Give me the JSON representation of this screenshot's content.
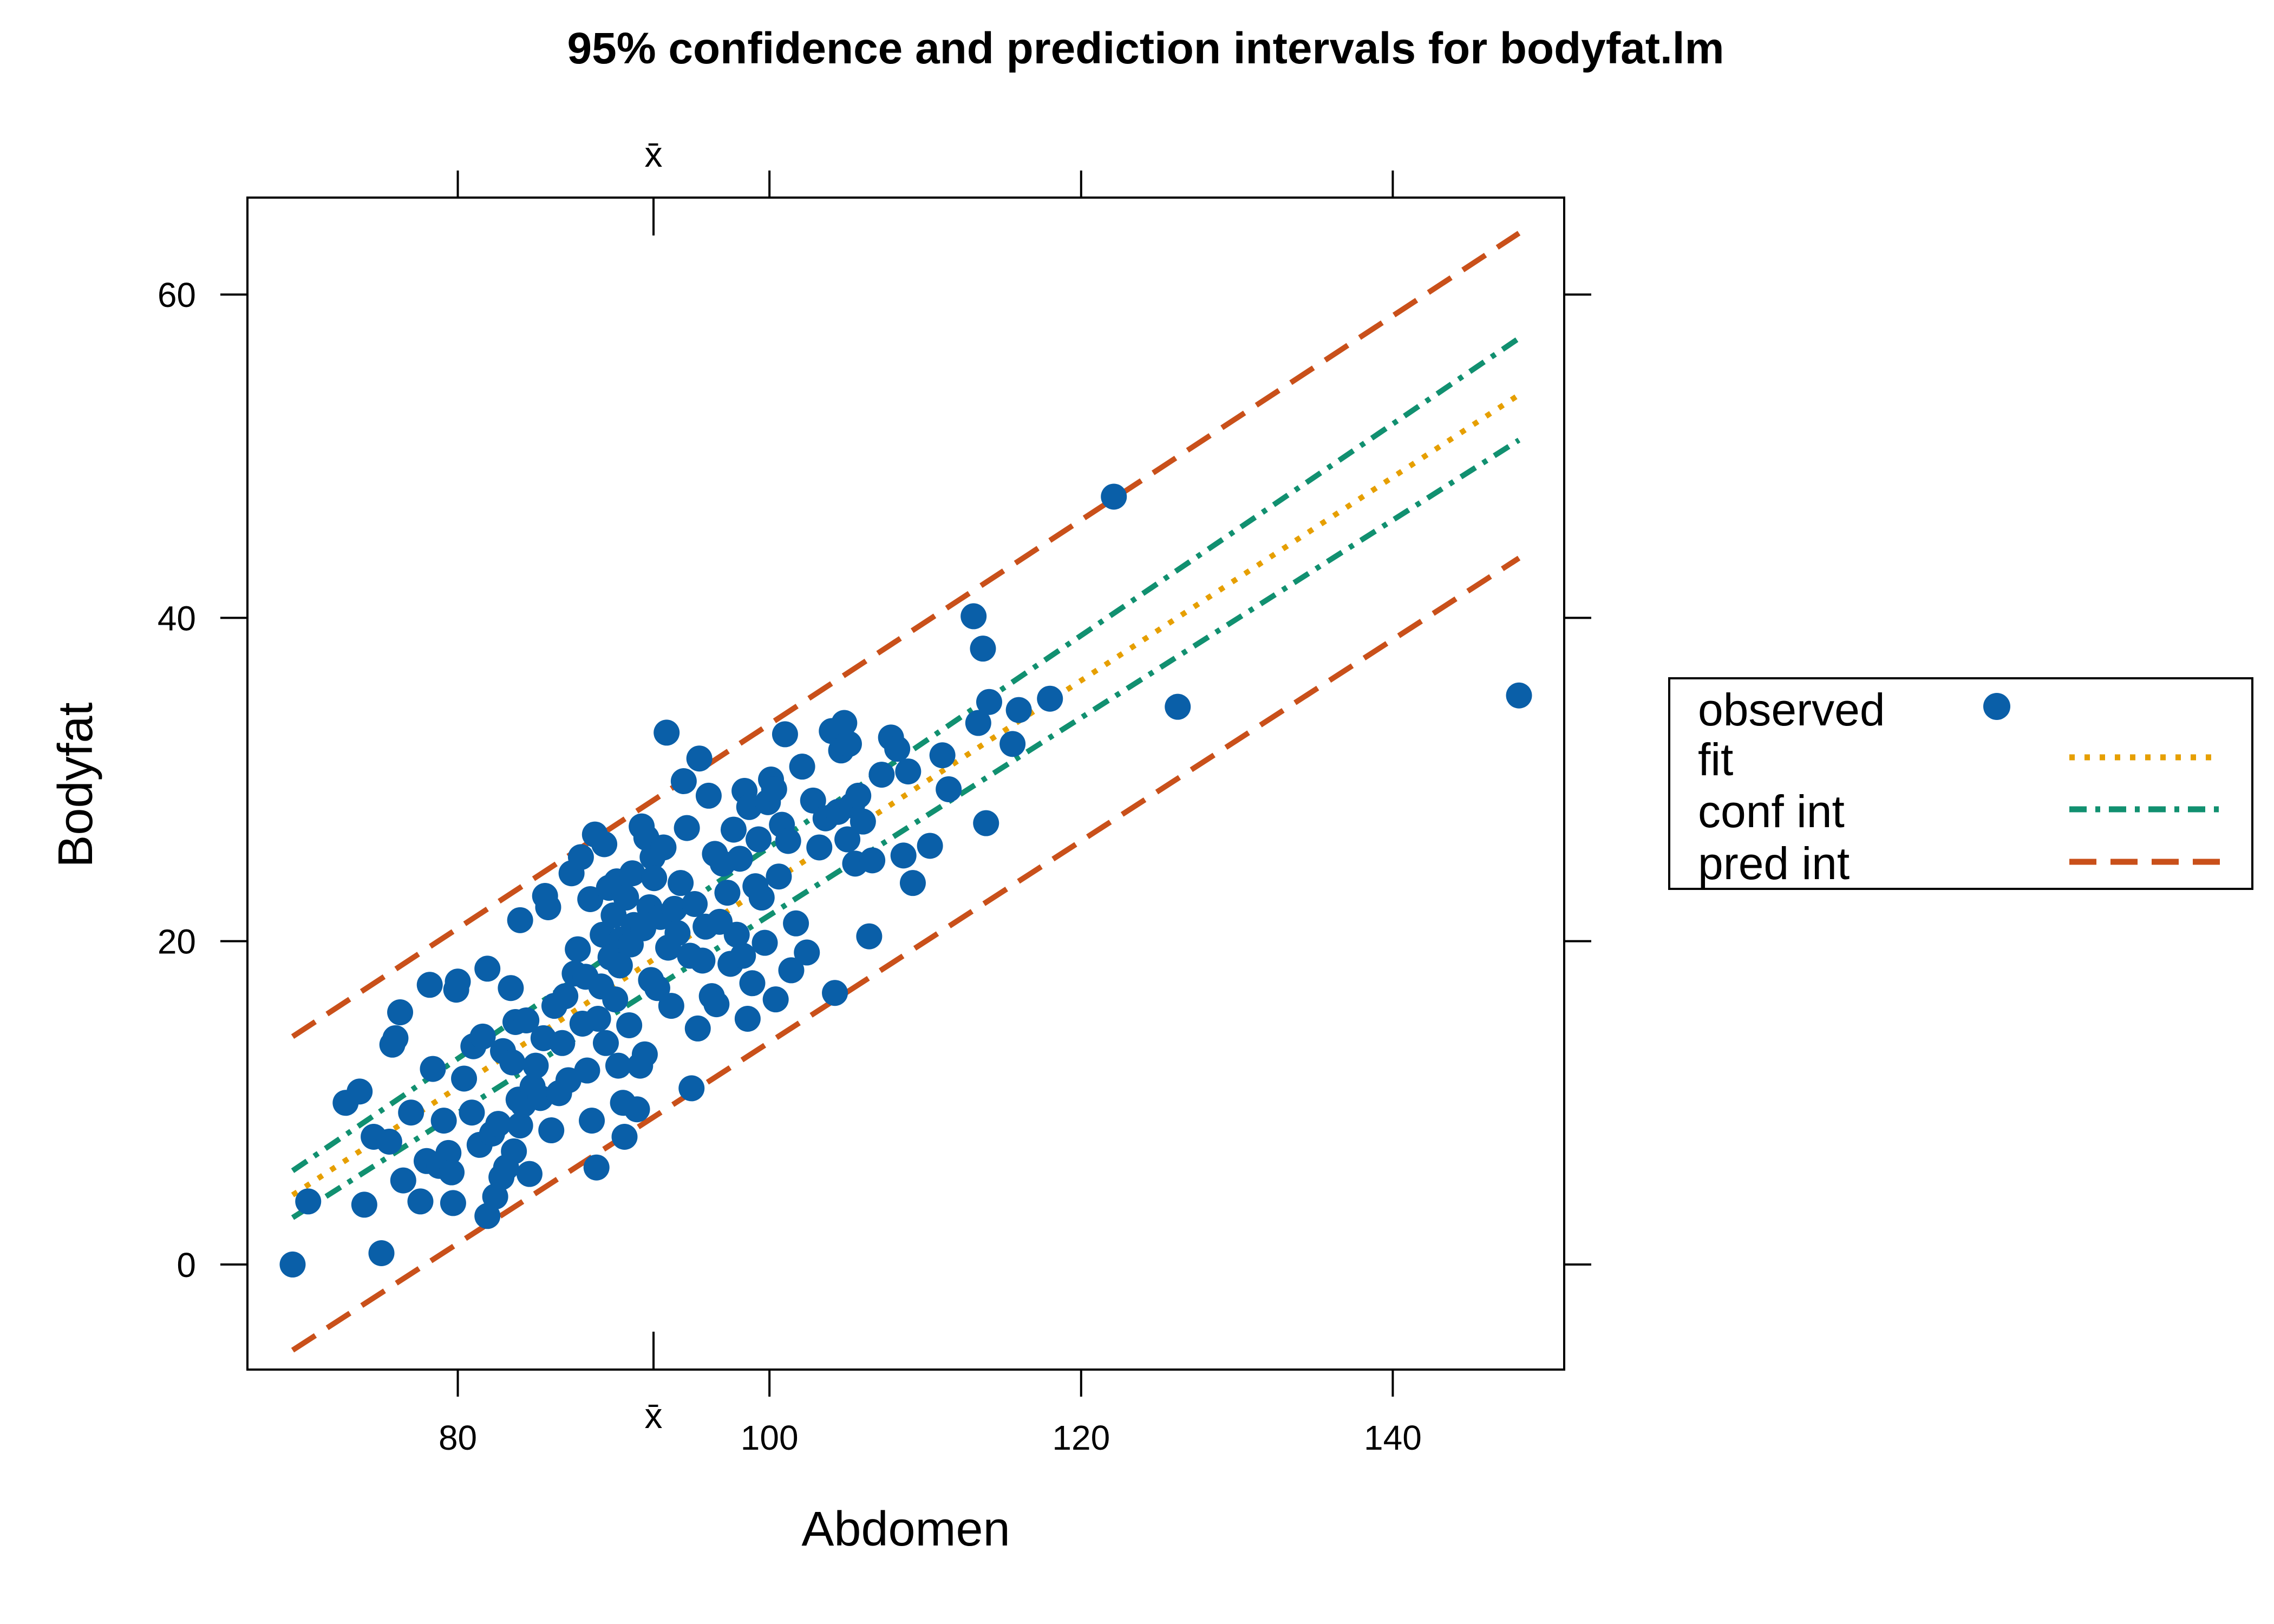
{
  "chart_data": {
    "type": "scatter",
    "title": "95% confidence and prediction intervals for bodyfat.lm",
    "xlabel": "Abdomen",
    "ylabel": "Bodyfat",
    "xlim": [
      66.5,
      151
    ],
    "ylim": [
      -6.5,
      66
    ],
    "xticks": [
      80,
      100,
      120,
      140
    ],
    "yticks": [
      0,
      20,
      40,
      60
    ],
    "xbar": 92.56,
    "xbar_label": "x̄",
    "grid": false,
    "legend_position": "right",
    "legend": [
      {
        "label": "observed",
        "style": "point",
        "color": "#0a5fa8"
      },
      {
        "label": "fit",
        "style": "dotted",
        "color": "#e69f00"
      },
      {
        "label": "conf int",
        "style": "dotdash",
        "color": "#119070"
      },
      {
        "label": "pred int",
        "style": "dashed",
        "color": "#c9501a"
      }
    ],
    "lines": {
      "x": [
        69.4,
        148.1
      ],
      "fit": [
        4.3,
        53.8
      ],
      "conf_lower": [
        2.9,
        51.0
      ],
      "conf_upper": [
        5.8,
        57.3
      ],
      "pred_lower": [
        -5.3,
        43.7
      ],
      "pred_upper": [
        14.1,
        63.8
      ]
    },
    "points": [
      [
        69.4,
        0.0
      ],
      [
        70.4,
        3.9
      ],
      [
        72.8,
        10.0
      ],
      [
        73.7,
        10.7
      ],
      [
        74.0,
        3.7
      ],
      [
        74.6,
        7.9
      ],
      [
        75.1,
        0.7
      ],
      [
        75.6,
        7.6
      ],
      [
        75.8,
        13.6
      ],
      [
        76.0,
        14.0
      ],
      [
        76.3,
        15.6
      ],
      [
        76.5,
        5.2
      ],
      [
        77.0,
        9.4
      ],
      [
        77.6,
        3.9
      ],
      [
        78.0,
        6.4
      ],
      [
        78.2,
        17.3
      ],
      [
        78.4,
        12.1
      ],
      [
        78.8,
        6.1
      ],
      [
        79.1,
        8.9
      ],
      [
        79.4,
        6.9
      ],
      [
        79.6,
        5.7
      ],
      [
        79.7,
        3.8
      ],
      [
        79.9,
        17.0
      ],
      [
        80.0,
        17.5
      ],
      [
        80.4,
        11.5
      ],
      [
        80.9,
        9.4
      ],
      [
        81.0,
        13.5
      ],
      [
        81.4,
        7.4
      ],
      [
        81.6,
        14.1
      ],
      [
        81.9,
        3.0
      ],
      [
        81.9,
        18.3
      ],
      [
        82.2,
        8.1
      ],
      [
        82.4,
        4.2
      ],
      [
        82.6,
        8.7
      ],
      [
        82.8,
        5.4
      ],
      [
        82.9,
        13.2
      ],
      [
        83.1,
        6.0
      ],
      [
        83.4,
        17.1
      ],
      [
        83.5,
        12.5
      ],
      [
        83.6,
        7.0
      ],
      [
        83.7,
        15.0
      ],
      [
        83.9,
        10.2
      ],
      [
        84.0,
        8.6
      ],
      [
        84.0,
        21.3
      ],
      [
        84.2,
        9.9
      ],
      [
        84.4,
        15.1
      ],
      [
        84.6,
        5.6
      ],
      [
        84.8,
        11.0
      ],
      [
        85.0,
        12.3
      ],
      [
        85.3,
        10.3
      ],
      [
        85.5,
        14.0
      ],
      [
        85.6,
        22.8
      ],
      [
        85.8,
        22.1
      ],
      [
        86.0,
        8.3
      ],
      [
        86.2,
        16.0
      ],
      [
        86.5,
        10.6
      ],
      [
        86.7,
        13.7
      ],
      [
        86.9,
        16.6
      ],
      [
        87.1,
        11.4
      ],
      [
        87.3,
        24.2
      ],
      [
        87.5,
        18.0
      ],
      [
        87.7,
        19.5
      ],
      [
        87.9,
        25.2
      ],
      [
        88.0,
        14.9
      ],
      [
        88.2,
        17.8
      ],
      [
        88.3,
        12.0
      ],
      [
        88.5,
        22.6
      ],
      [
        88.6,
        8.9
      ],
      [
        88.8,
        26.6
      ],
      [
        88.9,
        6.0
      ],
      [
        89.0,
        15.2
      ],
      [
        89.2,
        17.2
      ],
      [
        89.3,
        20.4
      ],
      [
        89.4,
        26.0
      ],
      [
        89.5,
        13.7
      ],
      [
        89.7,
        23.3
      ],
      [
        89.8,
        19.0
      ],
      [
        90.0,
        21.6
      ],
      [
        90.1,
        16.4
      ],
      [
        90.2,
        23.7
      ],
      [
        90.3,
        12.3
      ],
      [
        90.4,
        18.5
      ],
      [
        90.5,
        20.1
      ],
      [
        90.6,
        10.0
      ],
      [
        90.7,
        7.9
      ],
      [
        90.8,
        22.7
      ],
      [
        91.0,
        14.8
      ],
      [
        91.1,
        19.8
      ],
      [
        91.2,
        24.2
      ],
      [
        91.3,
        21.0
      ],
      [
        91.5,
        9.6
      ],
      [
        91.7,
        12.3
      ],
      [
        91.8,
        27.1
      ],
      [
        91.9,
        20.8
      ],
      [
        92.0,
        13.0
      ],
      [
        92.1,
        26.4
      ],
      [
        92.3,
        22.1
      ],
      [
        92.4,
        17.6
      ],
      [
        92.5,
        25.2
      ],
      [
        92.6,
        23.9
      ],
      [
        92.8,
        17.1
      ],
      [
        93.0,
        21.5
      ],
      [
        93.2,
        25.8
      ],
      [
        93.4,
        32.9
      ],
      [
        93.5,
        19.6
      ],
      [
        93.7,
        16.0
      ],
      [
        93.9,
        22.0
      ],
      [
        94.1,
        20.5
      ],
      [
        94.3,
        23.6
      ],
      [
        94.5,
        29.9
      ],
      [
        94.7,
        27.0
      ],
      [
        94.9,
        19.1
      ],
      [
        95.0,
        10.9
      ],
      [
        95.2,
        22.3
      ],
      [
        95.4,
        14.6
      ],
      [
        95.5,
        31.3
      ],
      [
        95.7,
        18.8
      ],
      [
        95.9,
        20.9
      ],
      [
        96.1,
        29.0
      ],
      [
        96.3,
        16.6
      ],
      [
        96.5,
        25.4
      ],
      [
        96.6,
        16.1
      ],
      [
        96.8,
        21.2
      ],
      [
        97.0,
        24.8
      ],
      [
        97.3,
        23.0
      ],
      [
        97.5,
        18.6
      ],
      [
        97.7,
        26.9
      ],
      [
        97.9,
        20.4
      ],
      [
        98.1,
        25.1
      ],
      [
        98.3,
        19.1
      ],
      [
        98.4,
        29.3
      ],
      [
        98.6,
        15.2
      ],
      [
        98.7,
        28.3
      ],
      [
        98.9,
        17.4
      ],
      [
        99.1,
        23.4
      ],
      [
        99.3,
        26.3
      ],
      [
        99.5,
        22.7
      ],
      [
        99.7,
        19.9
      ],
      [
        99.9,
        28.6
      ],
      [
        100.1,
        30.0
      ],
      [
        100.3,
        29.4
      ],
      [
        100.4,
        16.4
      ],
      [
        100.6,
        24.0
      ],
      [
        100.8,
        27.2
      ],
      [
        101.0,
        32.8
      ],
      [
        101.2,
        26.2
      ],
      [
        101.4,
        18.2
      ],
      [
        101.7,
        21.1
      ],
      [
        102.1,
        30.8
      ],
      [
        102.4,
        19.3
      ],
      [
        102.8,
        28.7
      ],
      [
        103.2,
        25.8
      ],
      [
        103.6,
        27.6
      ],
      [
        104.0,
        33.0
      ],
      [
        104.2,
        16.8
      ],
      [
        104.4,
        28.0
      ],
      [
        104.6,
        31.8
      ],
      [
        104.8,
        33.5
      ],
      [
        105.0,
        26.3
      ],
      [
        105.1,
        32.2
      ],
      [
        105.3,
        28.4
      ],
      [
        105.5,
        24.8
      ],
      [
        105.7,
        29.0
      ],
      [
        106.0,
        27.4
      ],
      [
        106.4,
        20.3
      ],
      [
        106.6,
        25.0
      ],
      [
        107.2,
        30.3
      ],
      [
        107.8,
        32.6
      ],
      [
        108.2,
        31.9
      ],
      [
        108.6,
        25.3
      ],
      [
        108.9,
        30.5
      ],
      [
        109.2,
        23.6
      ],
      [
        110.3,
        25.9
      ],
      [
        111.1,
        31.5
      ],
      [
        111.5,
        29.4
      ],
      [
        113.1,
        40.1
      ],
      [
        113.4,
        33.5
      ],
      [
        113.7,
        38.1
      ],
      [
        113.9,
        27.3
      ],
      [
        114.1,
        34.8
      ],
      [
        115.6,
        32.2
      ],
      [
        116.0,
        34.3
      ],
      [
        118.0,
        35.0
      ],
      [
        122.1,
        47.5
      ],
      [
        126.2,
        34.5
      ],
      [
        148.1,
        35.2
      ]
    ]
  }
}
